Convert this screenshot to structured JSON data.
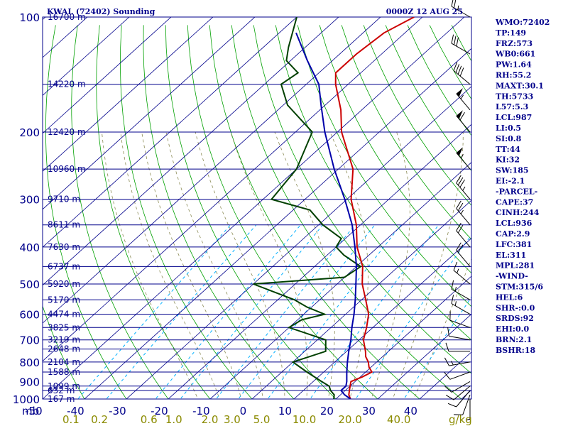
{
  "header": {
    "station": "KWAL (72402) Sounding",
    "time": "0000Z 12 AUG 25"
  },
  "chart_data": {
    "type": "line",
    "title": "KWAL (72402) Sounding",
    "pressure_unit": "mb",
    "mixing_unit": "g/kg",
    "pressure_levels": [
      1000,
      900,
      800,
      700,
      600,
      500,
      400,
      300,
      200,
      100
    ],
    "pressure_labels": [
      "1000",
      "900",
      "800",
      "700",
      "600",
      "500",
      "400",
      "300",
      "200",
      "100"
    ],
    "temperature_ticks": [
      -50,
      -40,
      -30,
      -20,
      -10,
      0,
      10,
      20,
      30,
      40
    ],
    "temperature_labels": [
      "-50",
      "-40",
      "-30",
      "-20",
      "-10",
      "0",
      "10",
      "20",
      "30",
      "40"
    ],
    "mixing_ratios": [
      0.1,
      0.2,
      0.6,
      1.0,
      2.0,
      3.0,
      5.0,
      10.0,
      20.0,
      40.0
    ],
    "mixing_labels": [
      "0.1",
      "0.2",
      "0.6",
      "1.0",
      "2.0",
      "3.0",
      "5.0",
      "10.0",
      "20.0",
      "40.0"
    ],
    "heights": [
      {
        "p": 1000,
        "label": "167 m"
      },
      {
        "p": 950,
        "label": "632 m"
      },
      {
        "p": 925,
        "label": "1099 m"
      },
      {
        "p": 850,
        "label": "1588 m"
      },
      {
        "p": 800,
        "label": "2104 m"
      },
      {
        "p": 740,
        "label": "2648 m"
      },
      {
        "p": 700,
        "label": "3219 m"
      },
      {
        "p": 650,
        "label": "3825 m"
      },
      {
        "p": 600,
        "label": "4474 m"
      },
      {
        "p": 550,
        "label": "5170 m"
      },
      {
        "p": 500,
        "label": "5920 m"
      },
      {
        "p": 450,
        "label": "6737 m"
      },
      {
        "p": 400,
        "label": "7630 m"
      },
      {
        "p": 350,
        "label": "8611 m"
      },
      {
        "p": 300,
        "label": "9710 m"
      },
      {
        "p": 250,
        "label": "10960 m"
      },
      {
        "p": 200,
        "label": "12420 m"
      },
      {
        "p": 150,
        "label": "14220 m"
      },
      {
        "p": 100,
        "label": "16700 m"
      }
    ],
    "series": [
      {
        "name": "temperature",
        "color": "#cc0000",
        "points": [
          [
            1000,
            23.5
          ],
          [
            975,
            22.0
          ],
          [
            950,
            21.0
          ],
          [
            925,
            20.0
          ],
          [
            900,
            19.0
          ],
          [
            875,
            20.5
          ],
          [
            850,
            21.5
          ],
          [
            825,
            19.5
          ],
          [
            800,
            18.0
          ],
          [
            775,
            16.0
          ],
          [
            750,
            14.5
          ],
          [
            700,
            11.0
          ],
          [
            650,
            8.5
          ],
          [
            600,
            5.5
          ],
          [
            550,
            1.0
          ],
          [
            500,
            -4.0
          ],
          [
            450,
            -8.5
          ],
          [
            400,
            -15.0
          ],
          [
            350,
            -21.0
          ],
          [
            300,
            -29.0
          ],
          [
            250,
            -36.5
          ],
          [
            200,
            -49.0
          ],
          [
            175,
            -55.0
          ],
          [
            150,
            -63.0
          ],
          [
            140,
            -66.0
          ],
          [
            125,
            -66.0
          ],
          [
            110,
            -65.0
          ],
          [
            100,
            -62.0
          ]
        ]
      },
      {
        "name": "dewpoint",
        "color": "#004000",
        "points": [
          [
            1000,
            19.5
          ],
          [
            975,
            18.5
          ],
          [
            950,
            16.5
          ],
          [
            925,
            15.0
          ],
          [
            900,
            12.0
          ],
          [
            850,
            6.0
          ],
          [
            800,
            0.0
          ],
          [
            750,
            5.0
          ],
          [
            700,
            2.0
          ],
          [
            650,
            -10.0
          ],
          [
            620,
            -9.0
          ],
          [
            600,
            -5.0
          ],
          [
            575,
            -11.0
          ],
          [
            550,
            -16.0
          ],
          [
            500,
            -30.0
          ],
          [
            480,
            -10.0
          ],
          [
            450,
            -9.0
          ],
          [
            420,
            -16.0
          ],
          [
            400,
            -20.0
          ],
          [
            380,
            -21.0
          ],
          [
            350,
            -29.0
          ],
          [
            320,
            -36.0
          ],
          [
            300,
            -48.0
          ],
          [
            250,
            -50.0
          ],
          [
            200,
            -56.0
          ],
          [
            170,
            -69.0
          ],
          [
            150,
            -76.0
          ],
          [
            140,
            -75.0
          ],
          [
            130,
            -81.0
          ],
          [
            120,
            -84.0
          ],
          [
            100,
            -90.0
          ]
        ]
      },
      {
        "name": "parcel",
        "color": "#0000aa",
        "points": [
          [
            1000,
            23.5
          ],
          [
            975,
            21.0
          ],
          [
            950,
            19.0
          ],
          [
            925,
            19.0
          ],
          [
            900,
            18.0
          ],
          [
            850,
            15.5
          ],
          [
            800,
            13.0
          ],
          [
            750,
            10.5
          ],
          [
            700,
            8.0
          ],
          [
            650,
            5.0
          ],
          [
            600,
            2.0
          ],
          [
            550,
            -1.5
          ],
          [
            500,
            -5.5
          ],
          [
            450,
            -10.0
          ],
          [
            400,
            -15.5
          ],
          [
            350,
            -22.0
          ],
          [
            300,
            -30.5
          ],
          [
            250,
            -41.0
          ],
          [
            200,
            -53.0
          ],
          [
            170,
            -61.0
          ],
          [
            150,
            -67.0
          ],
          [
            130,
            -76.0
          ],
          [
            110,
            -86.0
          ]
        ]
      }
    ],
    "winds": [
      {
        "p": 1000,
        "dir": 180,
        "spd": 5
      },
      {
        "p": 975,
        "dir": 200,
        "spd": 10
      },
      {
        "p": 950,
        "dir": 220,
        "spd": 10
      },
      {
        "p": 925,
        "dir": 230,
        "spd": 10
      },
      {
        "p": 900,
        "dir": 240,
        "spd": 10
      },
      {
        "p": 850,
        "dir": 250,
        "spd": 10
      },
      {
        "p": 800,
        "dir": 260,
        "spd": 15
      },
      {
        "p": 750,
        "dir": 270,
        "spd": 10
      },
      {
        "p": 700,
        "dir": 280,
        "spd": 10
      },
      {
        "p": 650,
        "dir": 290,
        "spd": 10
      },
      {
        "p": 600,
        "dir": 300,
        "spd": 15
      },
      {
        "p": 550,
        "dir": 300,
        "spd": 15
      },
      {
        "p": 500,
        "dir": 310,
        "spd": 15
      },
      {
        "p": 450,
        "dir": 320,
        "spd": 20
      },
      {
        "p": 400,
        "dir": 320,
        "spd": 20
      },
      {
        "p": 350,
        "dir": 320,
        "spd": 25
      },
      {
        "p": 300,
        "dir": 320,
        "spd": 35
      },
      {
        "p": 250,
        "dir": 320,
        "spd": 55
      },
      {
        "p": 200,
        "dir": 320,
        "spd": 60
      },
      {
        "p": 175,
        "dir": 320,
        "spd": 55
      },
      {
        "p": 150,
        "dir": 310,
        "spd": 40
      },
      {
        "p": 125,
        "dir": 300,
        "spd": 30
      },
      {
        "p": 100,
        "dir": 300,
        "spd": 25
      }
    ],
    "indices": [
      "WMO:72402",
      "TP:149",
      "FRZ:573",
      "WB0:661",
      "PW:1.64",
      "RH:55.2",
      "MAXT:30.1",
      "TH:5733",
      "L57:5.3",
      "LCL:987",
      "LI:0.5",
      "SI:0.8",
      "TT:44",
      "KI:32",
      "SW:185",
      "EI:-2.1",
      "-PARCEL-",
      "CAPE:37",
      "CINH:244",
      "LCL:936",
      "CAP:2.9",
      "LFC:381",
      "EL:311",
      "MPL:281",
      "-WIND-",
      "STM:315/6",
      "HEL:6",
      "SHR-:0.0",
      "SRDS:92",
      "EHI:0.0",
      "BRN:2.1",
      "BSHR:18"
    ],
    "colors": {
      "isobar": "#00008b",
      "isotherm": "#00008b",
      "dry_adiabat": "#00a000",
      "moist_adiabat": "#8b8b55",
      "mixing_ratio": "#00b0ff",
      "label": "#00008b",
      "mixing_label": "#8b8b00"
    }
  }
}
